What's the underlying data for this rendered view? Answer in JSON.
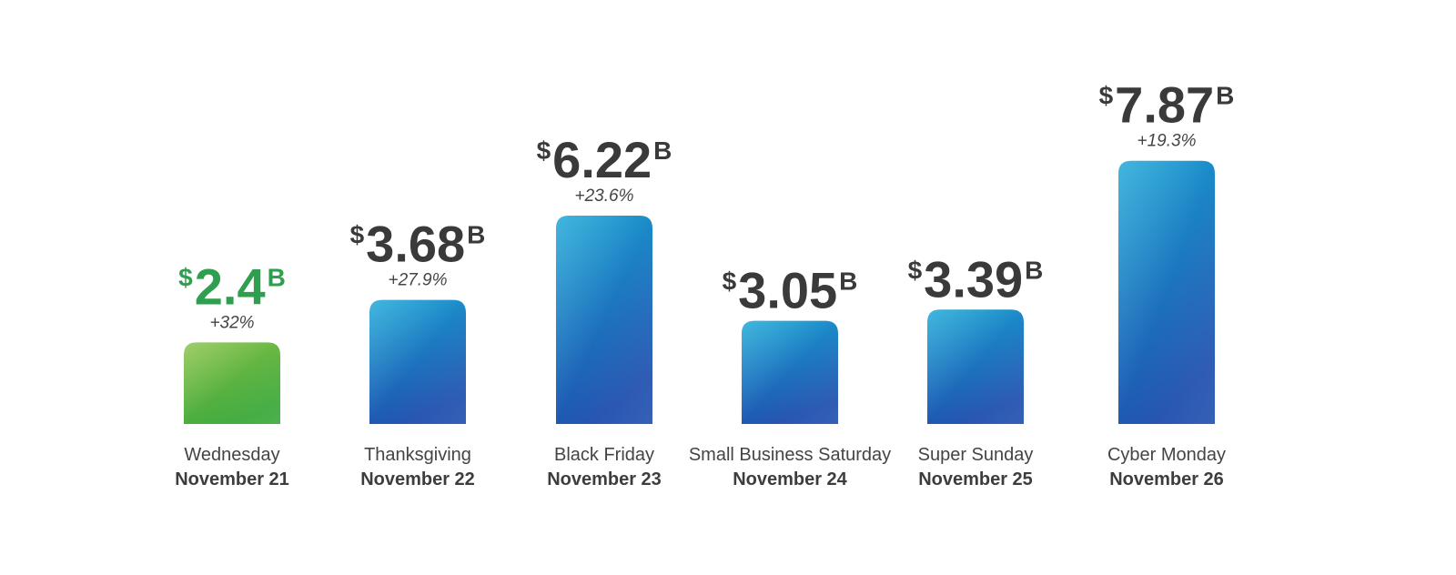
{
  "chart_data": {
    "type": "bar",
    "title": "",
    "xlabel": "",
    "ylabel": "",
    "ylim": [
      0,
      8
    ],
    "grid": false,
    "currency_symbol": "$",
    "unit_suffix": "B",
    "categories": [
      {
        "day": "Wednesday",
        "date": "November 21"
      },
      {
        "day": "Thanksgiving",
        "date": "November 22"
      },
      {
        "day": "Black Friday",
        "date": "November 23"
      },
      {
        "day": "Small Business Saturday",
        "date": "November 24"
      },
      {
        "day": "Super Sunday",
        "date": "November 25"
      },
      {
        "day": "Cyber Monday",
        "date": "November 26"
      }
    ],
    "values": [
      2.4,
      3.68,
      6.22,
      3.05,
      3.39,
      7.87
    ],
    "value_labels": [
      "2.4",
      "3.68",
      "6.22",
      "3.05",
      "3.39",
      "7.87"
    ],
    "change_labels": [
      "+32%",
      "+27.9%",
      "+23.6%",
      "",
      "",
      "+19.3%"
    ],
    "colors": {
      "highlight_bar_top": "#8bc34a",
      "highlight_bar_bottom": "#3aa83a",
      "highlight_text": "#2e9e4f",
      "bar_top": "#19a7d6",
      "bar_bottom": "#1f4fae",
      "value_text": "#3a3a3a"
    },
    "highlight_index": 0
  }
}
